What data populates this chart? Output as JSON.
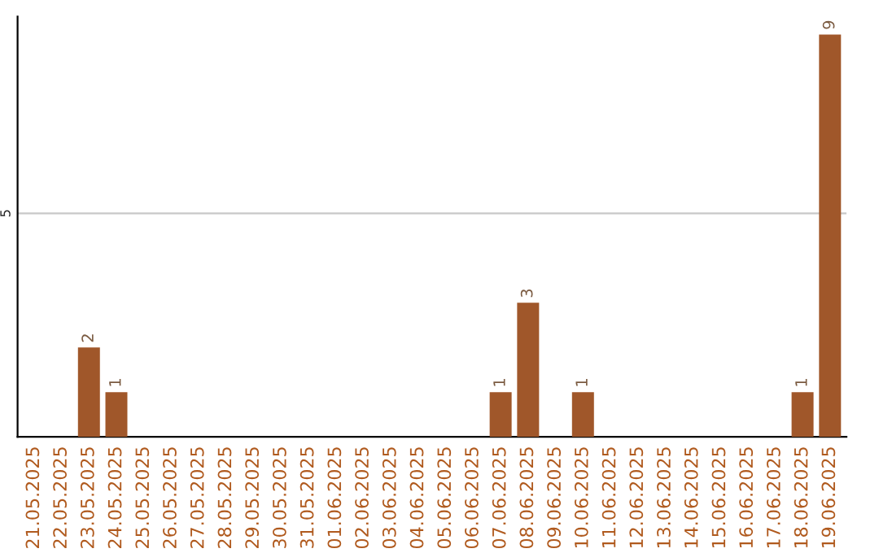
{
  "chart_data": {
    "type": "bar",
    "categories": [
      "21.05.2025",
      "22.05.2025",
      "23.05.2025",
      "24.05.2025",
      "25.05.2025",
      "26.05.2025",
      "27.05.2025",
      "28.05.2025",
      "29.05.2025",
      "30.05.2025",
      "31.05.2025",
      "01.06.2025",
      "02.06.2025",
      "03.06.2025",
      "04.06.2025",
      "05.06.2025",
      "06.06.2025",
      "07.06.2025",
      "08.06.2025",
      "09.06.2025",
      "10.06.2025",
      "11.06.2025",
      "12.06.2025",
      "13.06.2025",
      "14.06.2025",
      "15.06.2025",
      "16.06.2025",
      "17.06.2025",
      "18.06.2025",
      "19.06.2025"
    ],
    "values": [
      0,
      0,
      2,
      1,
      0,
      0,
      0,
      0,
      0,
      0,
      0,
      0,
      0,
      0,
      0,
      0,
      0,
      1,
      3,
      0,
      1,
      0,
      0,
      0,
      0,
      0,
      0,
      0,
      1,
      9
    ],
    "value_labels": [
      null,
      null,
      "2",
      "1",
      null,
      null,
      null,
      null,
      null,
      null,
      null,
      null,
      null,
      null,
      null,
      null,
      null,
      "1",
      "3",
      null,
      "1",
      null,
      null,
      null,
      null,
      null,
      null,
      null,
      "1",
      "9"
    ],
    "color": "#a0572a",
    "ylim": [
      0,
      9.4
    ],
    "yticks": [
      5
    ],
    "grid": "y"
  }
}
